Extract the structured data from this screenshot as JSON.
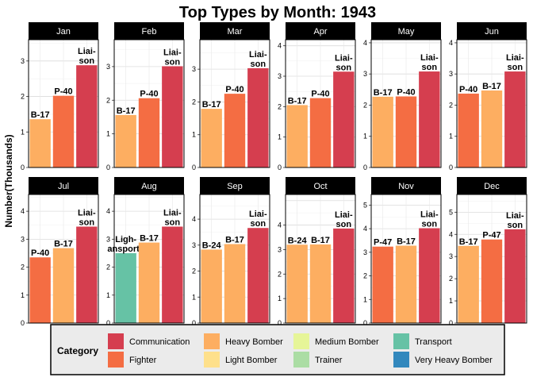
{
  "chart_data": {
    "type": "bar",
    "title": "Top Types by Month: 1943",
    "ylabel": "Number(Thousands)",
    "xlabel": "",
    "grid": true,
    "legend": {
      "title": "Category",
      "placement": "bottom",
      "items": [
        {
          "name": "Communication",
          "color": "#d53e4f"
        },
        {
          "name": "Fighter",
          "color": "#f46d43"
        },
        {
          "name": "Heavy Bomber",
          "color": "#fdae61"
        },
        {
          "name": "Light Bomber",
          "color": "#fee08b"
        },
        {
          "name": "Medium Bomber",
          "color": "#e6f598"
        },
        {
          "name": "Trainer",
          "color": "#abdda4"
        },
        {
          "name": "Transport",
          "color": "#66c2a5"
        },
        {
          "name": "Very Heavy Bomber",
          "color": "#3288bd"
        }
      ]
    },
    "panels": [
      {
        "month": "Jan",
        "ymax": 3.6,
        "ticks": [
          0,
          1,
          2,
          3
        ],
        "bars": [
          {
            "label": "B-17",
            "category": "Heavy Bomber",
            "value": 1.36
          },
          {
            "label": "P-40",
            "category": "Fighter",
            "value": 2.02
          },
          {
            "label": "Liai-son",
            "category": "Communication",
            "value": 2.88
          }
        ]
      },
      {
        "month": "Feb",
        "ymax": 3.8,
        "ticks": [
          0,
          1,
          2,
          3
        ],
        "bars": [
          {
            "label": "B-17",
            "category": "Heavy Bomber",
            "value": 1.56
          },
          {
            "label": "P-40",
            "category": "Fighter",
            "value": 2.06
          },
          {
            "label": "Liai-son",
            "category": "Communication",
            "value": 3.01
          }
        ]
      },
      {
        "month": "Mar",
        "ymax": 3.9,
        "ticks": [
          0,
          1,
          2,
          3
        ],
        "bars": [
          {
            "label": "B-17",
            "category": "Heavy Bomber",
            "value": 1.79
          },
          {
            "label": "P-40",
            "category": "Fighter",
            "value": 2.25
          },
          {
            "label": "Liai-son",
            "category": "Communication",
            "value": 3.03
          }
        ]
      },
      {
        "month": "Apr",
        "ymax": 4.2,
        "ticks": [
          0,
          1,
          2,
          3,
          4
        ],
        "bars": [
          {
            "label": "B-17",
            "category": "Heavy Bomber",
            "value": 2.05
          },
          {
            "label": "P-40",
            "category": "Fighter",
            "value": 2.28
          },
          {
            "label": "Liai-son",
            "category": "Communication",
            "value": 3.15
          }
        ]
      },
      {
        "month": "May",
        "ymax": 4.1,
        "ticks": [
          0,
          1,
          2,
          3,
          4
        ],
        "bars": [
          {
            "label": "B-17",
            "category": "Heavy Bomber",
            "value": 2.27
          },
          {
            "label": "P-40",
            "category": "Fighter",
            "value": 2.28
          },
          {
            "label": "Liai-son",
            "category": "Communication",
            "value": 3.08
          }
        ]
      },
      {
        "month": "Jun",
        "ymax": 4.1,
        "ticks": [
          0,
          1,
          2,
          3,
          4
        ],
        "bars": [
          {
            "label": "P-40",
            "category": "Fighter",
            "value": 2.37
          },
          {
            "label": "B-17",
            "category": "Heavy Bomber",
            "value": 2.47
          },
          {
            "label": "Liai-son",
            "category": "Communication",
            "value": 3.08
          }
        ]
      },
      {
        "month": "Jul",
        "ymax": 4.6,
        "ticks": [
          0,
          1,
          2,
          3,
          4
        ],
        "bars": [
          {
            "label": "P-40",
            "category": "Fighter",
            "value": 2.35
          },
          {
            "label": "B-17",
            "category": "Heavy Bomber",
            "value": 2.68
          },
          {
            "label": "Liai-son",
            "category": "Communication",
            "value": 3.45
          }
        ]
      },
      {
        "month": "Aug",
        "ymax": 4.6,
        "ticks": [
          0,
          1,
          2,
          3,
          4
        ],
        "bars": [
          {
            "label": "Ligh-ansports",
            "category": "Transport",
            "value": 2.5
          },
          {
            "label": "B-17",
            "category": "Heavy Bomber",
            "value": 2.88
          },
          {
            "label": "Liai-son",
            "category": "Communication",
            "value": 3.45
          }
        ]
      },
      {
        "month": "Sep",
        "ymax": 4.95,
        "ticks": [
          0,
          1,
          2,
          3,
          4
        ],
        "bars": [
          {
            "label": "B-24",
            "category": "Heavy Bomber",
            "value": 2.83
          },
          {
            "label": "B-17",
            "category": "Heavy Bomber",
            "value": 3.04
          },
          {
            "label": "Liai-son",
            "category": "Communication",
            "value": 3.66
          }
        ]
      },
      {
        "month": "Oct",
        "ymax": 5.25,
        "ticks": [
          0,
          1,
          2,
          3,
          4
        ],
        "bars": [
          {
            "label": "B-24",
            "category": "Heavy Bomber",
            "value": 3.2
          },
          {
            "label": "B-17",
            "category": "Heavy Bomber",
            "value": 3.21
          },
          {
            "label": "Liai-son",
            "category": "Communication",
            "value": 3.86
          }
        ]
      },
      {
        "month": "Nov",
        "ymax": 5.45,
        "ticks": [
          0,
          1,
          2,
          3,
          4,
          5
        ],
        "bars": [
          {
            "label": "P-47",
            "category": "Fighter",
            "value": 3.24
          },
          {
            "label": "B-17",
            "category": "Heavy Bomber",
            "value": 3.28
          },
          {
            "label": "Liai-son",
            "category": "Communication",
            "value": 4.02
          }
        ]
      },
      {
        "month": "Dec",
        "ymax": 5.8,
        "ticks": [
          0,
          1,
          2,
          3,
          4,
          5
        ],
        "bars": [
          {
            "label": "B-17",
            "category": "Heavy Bomber",
            "value": 3.48
          },
          {
            "label": "P-47",
            "category": "Fighter",
            "value": 3.77
          },
          {
            "label": "Liai-son",
            "category": "Communication",
            "value": 4.23
          }
        ]
      }
    ]
  }
}
